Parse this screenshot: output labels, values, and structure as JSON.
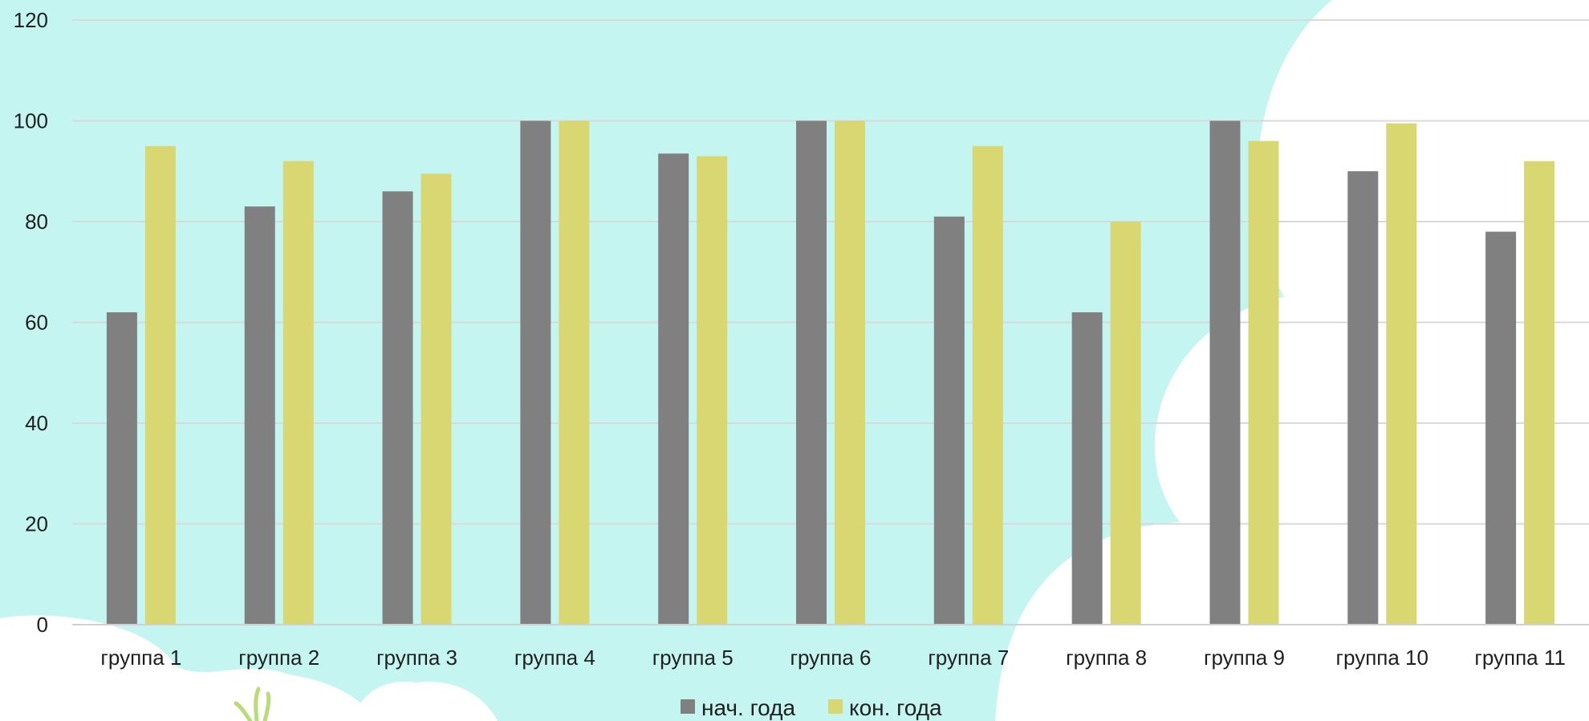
{
  "chart_data": {
    "type": "bar",
    "categories": [
      "группа 1",
      "группа 2",
      "группа 3",
      "группа 4",
      "группа 5",
      "группа 6",
      "группа 7",
      "группа 8",
      "группа 9",
      "группа 10",
      "группа 11"
    ],
    "series": [
      {
        "name": "нач. года",
        "color": "#808080",
        "values": [
          62,
          83,
          86,
          100,
          93.5,
          100,
          81,
          62,
          100,
          90,
          78
        ]
      },
      {
        "name": "кон. года",
        "color": "#d9d772",
        "values": [
          95,
          92,
          89.5,
          100,
          93,
          100,
          95,
          80,
          96,
          99.5,
          92
        ]
      }
    ],
    "ylim": [
      0,
      120
    ],
    "yticks": [
      "0",
      "20",
      "40",
      "60",
      "80",
      "100",
      "120"
    ],
    "grid": true,
    "legend_position": "bottom",
    "background_colors": {
      "sky": "#c4f5f1",
      "cloud": "#ffffff",
      "grass": "#b9db7a"
    }
  }
}
